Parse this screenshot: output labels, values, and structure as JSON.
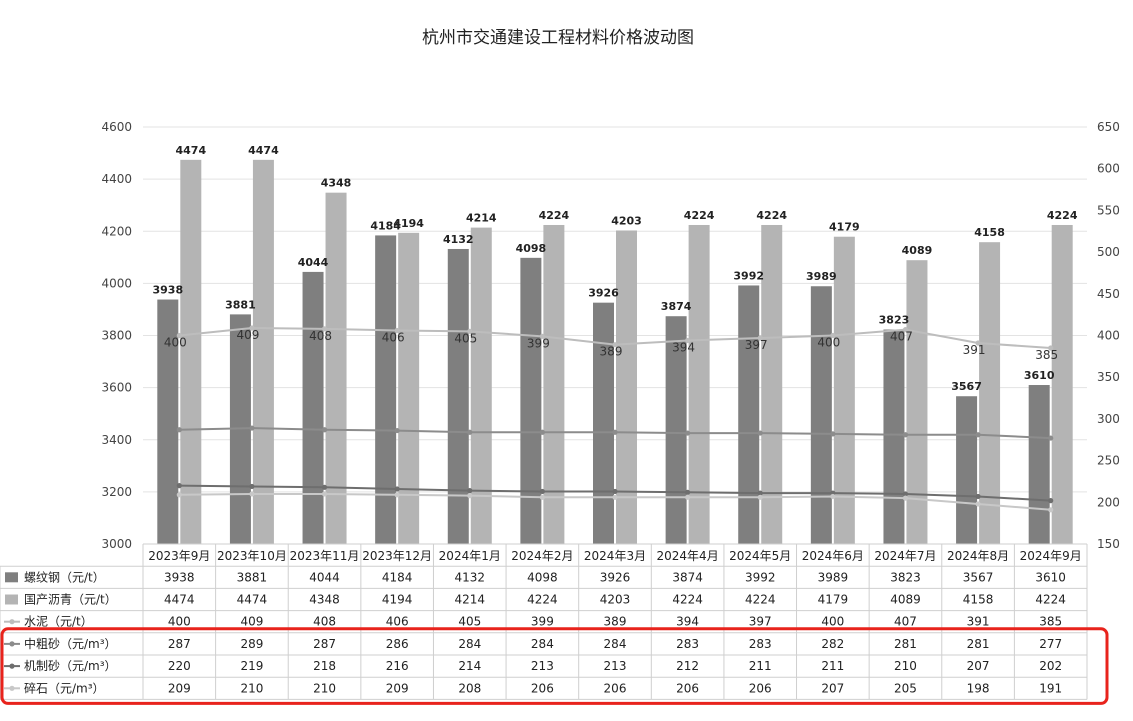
{
  "chart_data": {
    "type": "bar",
    "title": "杭州市交通建设工程材料价格波动图",
    "categories": [
      "2023年9月",
      "2023年10月",
      "2023年11月",
      "2023年12月",
      "2024年1月",
      "2024年2月",
      "2024年3月",
      "2024年4月",
      "2024年5月",
      "2024年6月",
      "2024年7月",
      "2024年8月",
      "2024年9月"
    ],
    "left_axis": {
      "range": [
        3000,
        4600
      ],
      "ticks": [
        "3000",
        "3200",
        "3400",
        "3600",
        "3800",
        "4000",
        "4200",
        "4400",
        "4600"
      ]
    },
    "right_axis": {
      "range": [
        150,
        650
      ],
      "ticks": [
        "150",
        "200",
        "250",
        "300",
        "350",
        "400",
        "450",
        "500",
        "550",
        "600",
        "650"
      ]
    },
    "grid": true,
    "legend": "table-bottom",
    "series": [
      {
        "name": "螺纹钢（元/t）",
        "kind": "bar",
        "axis": "left",
        "color": "#7f7f7f",
        "values": [
          3938,
          3881,
          4044,
          4184,
          4132,
          4098,
          3926,
          3874,
          3992,
          3989,
          3823,
          3567,
          3610
        ],
        "labels": [
          "3938",
          "3881",
          "4044",
          "4184",
          "4132",
          "4098",
          "3926",
          "3874",
          "3992",
          "3989",
          "3823",
          "3567",
          "3610"
        ]
      },
      {
        "name": "国产沥青（元/t）",
        "kind": "bar",
        "axis": "left",
        "color": "#b4b4b4",
        "values": [
          4474,
          4474,
          4348,
          4194,
          4214,
          4224,
          4203,
          4224,
          4224,
          4179,
          4089,
          4158,
          4224
        ],
        "labels": [
          "4474",
          "4474",
          "4348",
          "4194",
          "4214",
          "4224",
          "4203",
          "4224",
          "4224",
          "4179",
          "4089",
          "4158",
          "4224"
        ]
      },
      {
        "name": "水泥（元/t）",
        "kind": "line",
        "axis": "right",
        "color": "#bdbdbd",
        "values": [
          400,
          409,
          408,
          406,
          405,
          399,
          389,
          394,
          397,
          400,
          407,
          391,
          385
        ],
        "labels": [
          "400",
          "409",
          "408",
          "406",
          "405",
          "399",
          "389",
          "394",
          "397",
          "400",
          "407",
          "391",
          "385"
        ]
      },
      {
        "name": "中粗砂（元/m³）",
        "kind": "line",
        "axis": "right",
        "color": "#8c8c8c",
        "values": [
          287,
          289,
          287,
          286,
          284,
          284,
          284,
          283,
          283,
          282,
          281,
          281,
          277
        ],
        "labels": [
          "287",
          "289",
          "287",
          "286",
          "284",
          "284",
          "284",
          "283",
          "283",
          "282",
          "281",
          "281",
          "277"
        ]
      },
      {
        "name": "机制砂（元/m³）",
        "kind": "line",
        "axis": "right",
        "color": "#6e6e6e",
        "values": [
          220,
          219,
          218,
          216,
          214,
          213,
          213,
          212,
          211,
          211,
          210,
          207,
          202
        ],
        "labels": [
          "220",
          "219",
          "218",
          "216",
          "214",
          "213",
          "213",
          "212",
          "211",
          "211",
          "210",
          "207",
          "202"
        ]
      },
      {
        "name": "碎石（元/m³）",
        "kind": "line",
        "axis": "right",
        "color": "#c8c8c8",
        "values": [
          209,
          210,
          210,
          209,
          208,
          206,
          206,
          206,
          206,
          207,
          205,
          198,
          191
        ],
        "labels": [
          "209",
          "210",
          "210",
          "209",
          "208",
          "206",
          "206",
          "206",
          "206",
          "207",
          "205",
          "198",
          "191"
        ]
      }
    ],
    "highlight": {
      "rows": [
        3,
        5
      ],
      "color": "#e8231c"
    }
  }
}
